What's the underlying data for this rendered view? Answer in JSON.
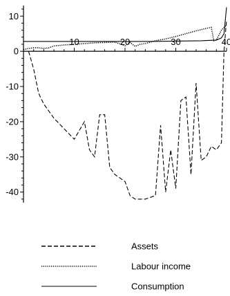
{
  "chart_data": {
    "type": "line",
    "title": "",
    "xlabel": "",
    "ylabel": "",
    "xlim": [
      0,
      40
    ],
    "ylim": [
      -43,
      13
    ],
    "x_ticks": [
      10,
      20,
      30,
      40
    ],
    "y_ticks": [
      10,
      0,
      -10,
      -20,
      -30,
      -40
    ],
    "grid": false,
    "legend_position": "bottom",
    "series": [
      {
        "name": "Assets",
        "style": "dashed",
        "x": [
          1,
          2,
          3,
          4,
          6,
          8,
          10,
          12,
          13,
          14,
          15,
          16,
          17,
          18,
          19,
          20,
          21,
          22,
          24,
          26,
          27,
          28,
          29,
          30,
          31,
          32,
          33,
          34,
          35,
          36,
          37,
          38,
          39,
          39.5,
          40
        ],
        "y": [
          0,
          -5,
          -12,
          -15,
          -19,
          -22,
          -25,
          -20,
          -28,
          -30,
          -18,
          -18,
          -33,
          -35,
          -36,
          -37,
          -41,
          -42,
          -42,
          -41,
          -21,
          -40,
          -28,
          -39,
          -14,
          -13,
          -35,
          -9,
          -31,
          -30,
          -27,
          -28,
          -26,
          0,
          9
        ]
      },
      {
        "name": "Labour income",
        "style": "dotted",
        "x": [
          0,
          1,
          2,
          3,
          4,
          5,
          6,
          8,
          10,
          12,
          14,
          16,
          18,
          20,
          21,
          22,
          23,
          24,
          26,
          28,
          30,
          32,
          34,
          36,
          37,
          37.5,
          38,
          39,
          40
        ],
        "y": [
          0.5,
          0.8,
          1.0,
          1.0,
          0.8,
          1.0,
          1.5,
          1.8,
          2.0,
          2.2,
          2.4,
          2.5,
          2.6,
          1.6,
          2.5,
          1.4,
          2.0,
          2.2,
          3.0,
          3.5,
          4.2,
          5.0,
          5.8,
          6.5,
          6.8,
          3.0,
          3.2,
          6.0,
          7.5
        ]
      },
      {
        "name": "Consumption",
        "style": "solid",
        "x": [
          0,
          5,
          10,
          15,
          20,
          25,
          30,
          35,
          38,
          39,
          39.5,
          40
        ],
        "y": [
          2.8,
          2.8,
          2.8,
          2.8,
          2.8,
          2.8,
          2.9,
          3.0,
          3.2,
          3.8,
          5.0,
          12.5
        ]
      }
    ]
  }
}
